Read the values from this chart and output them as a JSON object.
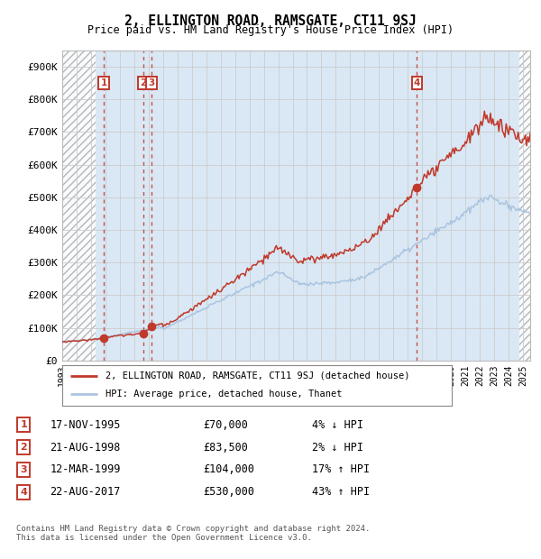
{
  "title": "2, ELLINGTON ROAD, RAMSGATE, CT11 9SJ",
  "subtitle": "Price paid vs. HM Land Registry's House Price Index (HPI)",
  "hpi_label": "HPI: Average price, detached house, Thanet",
  "property_label": "2, ELLINGTON ROAD, RAMSGATE, CT11 9SJ (detached house)",
  "sales": [
    {
      "num": 1,
      "date": "17-NOV-1995",
      "price": 70000,
      "year": 1995.88,
      "pct": "4%",
      "dir": "↓"
    },
    {
      "num": 2,
      "date": "21-AUG-1998",
      "price": 83500,
      "year": 1998.64,
      "pct": "2%",
      "dir": "↓"
    },
    {
      "num": 3,
      "date": "12-MAR-1999",
      "price": 104000,
      "year": 1999.19,
      "pct": "17%",
      "dir": "↑"
    },
    {
      "num": 4,
      "date": "22-AUG-2017",
      "price": 530000,
      "year": 2017.64,
      "pct": "43%",
      "dir": "↑"
    }
  ],
  "ylabel_vals": [
    0,
    100000,
    200000,
    300000,
    400000,
    500000,
    600000,
    700000,
    800000,
    900000
  ],
  "ylabel_strs": [
    "£0",
    "£100K",
    "£200K",
    "£300K",
    "£400K",
    "£500K",
    "£600K",
    "£700K",
    "£800K",
    "£900K"
  ],
  "xmin": 1993.0,
  "xmax": 2025.5,
  "ymin": 0,
  "ymax": 950000,
  "hpi_color": "#aac4e0",
  "property_color": "#c0392b",
  "grid_color": "#cccccc",
  "plot_bg": "#dae8f5",
  "outer_bg": "#ffffff",
  "hatch_left_end": 1995.3,
  "hatch_right_start": 2024.75,
  "footer": "Contains HM Land Registry data © Crown copyright and database right 2024.\nThis data is licensed under the Open Government Licence v3.0."
}
